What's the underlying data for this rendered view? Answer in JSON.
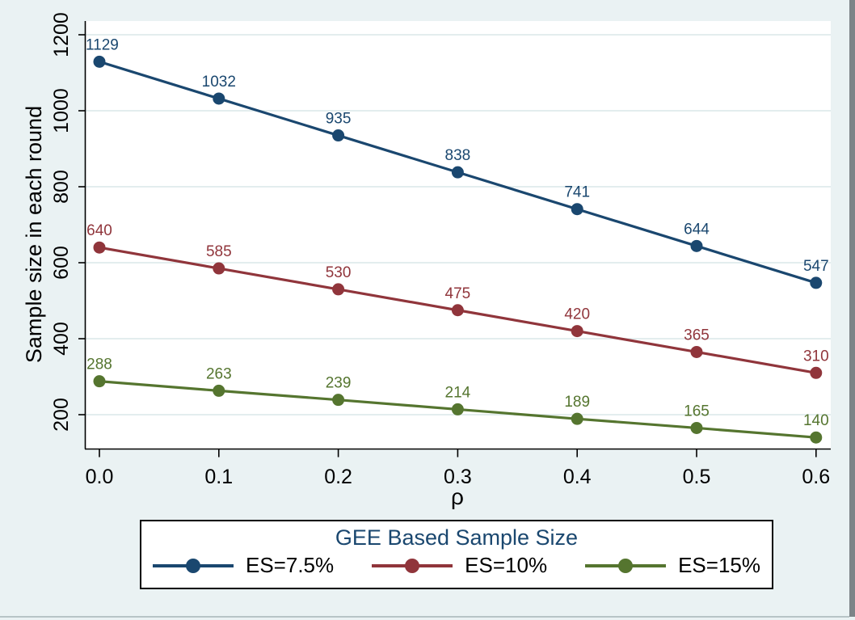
{
  "window": {
    "background": "#eaf2f3",
    "plot_background": "#ffffff",
    "frame": {
      "right_strip_color": "#7d8488",
      "bottom_line_color": "#b7c4c6"
    }
  },
  "chart_data": {
    "type": "line",
    "title": "",
    "xlabel": "ρ",
    "ylabel": "Sample size in each round",
    "x": [
      0.0,
      0.1,
      0.2,
      0.3,
      0.4,
      0.5,
      0.6
    ],
    "x_tick_labels": [
      "0.0",
      "0.1",
      "0.2",
      "0.3",
      "0.4",
      "0.5",
      "0.6"
    ],
    "y_ticks": [
      200,
      400,
      600,
      800,
      1000,
      1200
    ],
    "ylim": [
      110,
      1240
    ],
    "grid": "horizontal",
    "gridline_color": "#e3edee",
    "axis_color": "#000000",
    "tick_label_color": "#000000",
    "point_labels_shown": true,
    "series": [
      {
        "name": "ES=7.5%",
        "color": "#1a476f",
        "values": [
          1129,
          1032,
          935,
          838,
          741,
          644,
          547
        ]
      },
      {
        "name": "ES=10%",
        "color": "#90353b",
        "values": [
          640,
          585,
          530,
          475,
          420,
          365,
          310
        ]
      },
      {
        "name": "ES=15%",
        "color": "#55752f",
        "values": [
          288,
          263,
          239,
          214,
          189,
          165,
          140
        ]
      }
    ],
    "legend": {
      "title": "GEE Based Sample Size",
      "title_color": "#1a476f",
      "position": "bottom",
      "entries": [
        "ES=7.5%",
        "ES=10%",
        "ES=15%"
      ]
    }
  }
}
